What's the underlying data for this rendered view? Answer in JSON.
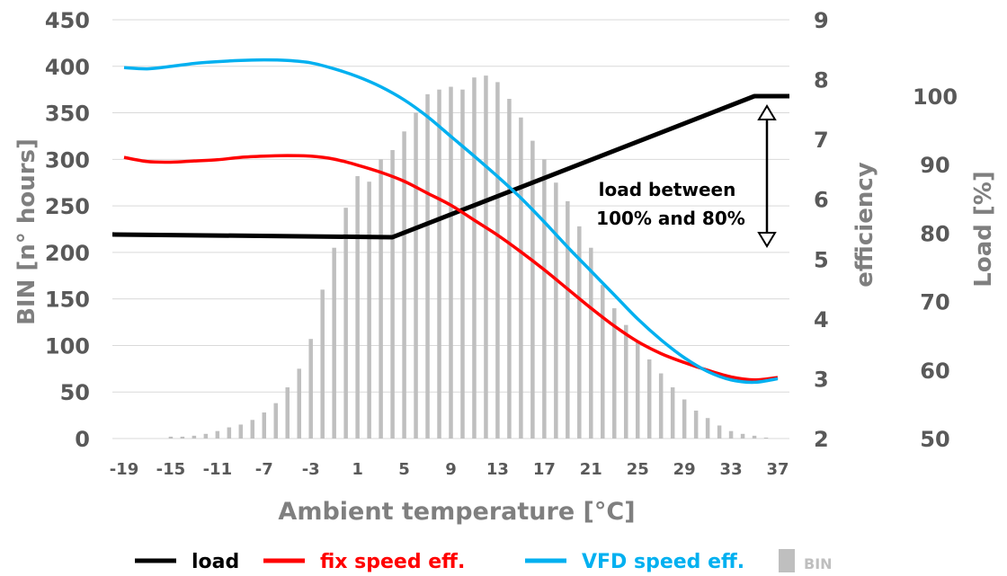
{
  "chart_data": {
    "type": "bar",
    "xlabel": "Ambient temperature [°C]",
    "ylabel_left": "BIN [n° hours]",
    "ylabel_right1": "efficiency",
    "ylabel_right2": "Load [%]",
    "annotation": [
      "load between",
      "100% and 80%"
    ],
    "ylim_left": [
      0,
      450
    ],
    "ylim_right1": [
      2,
      9
    ],
    "ylim_right2": [
      50,
      100
    ],
    "left_ticks": [
      0,
      50,
      100,
      150,
      200,
      250,
      300,
      350,
      400,
      450
    ],
    "right1_ticks": [
      2,
      3,
      4,
      5,
      6,
      7,
      8,
      9
    ],
    "right2_ticks": [
      50,
      60,
      70,
      80,
      90,
      100
    ],
    "x_ticks": [
      -19,
      -15,
      -11,
      -7,
      -3,
      1,
      5,
      9,
      13,
      17,
      21,
      25,
      29,
      33,
      37
    ],
    "x_range": [
      -20,
      38
    ],
    "bin": {
      "name": "BIN",
      "color": "#bfbfbf",
      "x": [
        -15,
        -14,
        -13,
        -12,
        -11,
        -10,
        -9,
        -8,
        -7,
        -6,
        -5,
        -4,
        -3,
        -2,
        -1,
        0,
        1,
        2,
        3,
        4,
        5,
        6,
        7,
        8,
        9,
        10,
        11,
        12,
        13,
        14,
        15,
        16,
        17,
        18,
        19,
        20,
        21,
        22,
        23,
        24,
        25,
        26,
        27,
        28,
        29,
        30,
        31,
        32,
        33,
        34,
        35,
        36
      ],
      "values": [
        2,
        2,
        3,
        5,
        8,
        12,
        15,
        20,
        28,
        38,
        55,
        75,
        107,
        160,
        205,
        248,
        282,
        276,
        300,
        310,
        330,
        350,
        370,
        375,
        378,
        375,
        388,
        390,
        383,
        365,
        345,
        320,
        300,
        275,
        255,
        228,
        205,
        165,
        140,
        122,
        105,
        85,
        70,
        55,
        42,
        30,
        22,
        14,
        8,
        5,
        3,
        1
      ]
    },
    "series": [
      {
        "name": "load",
        "axis": "right2",
        "color": "#000000",
        "x": [
          -20,
          4,
          35,
          38
        ],
        "values": [
          79.8,
          79.4,
          100,
          100
        ]
      },
      {
        "name": "fix speed eff.",
        "axis": "right1",
        "color": "#ff0000",
        "x": [
          -19,
          -17,
          -15,
          -13,
          -11,
          -9,
          -7,
          -5,
          -3,
          -1,
          1,
          3,
          5,
          7,
          9,
          11,
          13,
          15,
          17,
          19,
          21,
          23,
          25,
          27,
          29,
          31,
          33,
          35,
          37
        ],
        "values": [
          6.7,
          6.63,
          6.62,
          6.64,
          6.66,
          6.7,
          6.72,
          6.73,
          6.72,
          6.67,
          6.57,
          6.45,
          6.3,
          6.1,
          5.9,
          5.65,
          5.4,
          5.12,
          4.82,
          4.5,
          4.18,
          3.88,
          3.62,
          3.42,
          3.27,
          3.14,
          3.03,
          2.98,
          3.02
        ]
      },
      {
        "name": "VFD speed eff.",
        "axis": "right1",
        "color": "#00b0f0",
        "x": [
          -19,
          -17,
          -15,
          -13,
          -11,
          -9,
          -7,
          -5,
          -3,
          -1,
          1,
          3,
          5,
          7,
          9,
          11,
          13,
          15,
          17,
          19,
          21,
          23,
          25,
          27,
          29,
          31,
          33,
          35,
          37
        ],
        "values": [
          8.2,
          8.18,
          8.22,
          8.27,
          8.3,
          8.32,
          8.33,
          8.32,
          8.28,
          8.18,
          8.05,
          7.88,
          7.66,
          7.38,
          7.05,
          6.72,
          6.38,
          6.02,
          5.62,
          5.2,
          4.8,
          4.4,
          4.0,
          3.65,
          3.35,
          3.12,
          2.98,
          2.94,
          3.0
        ]
      }
    ],
    "legend": {
      "placement": "bottom",
      "items": [
        "load",
        "fix speed eff.",
        "VFD speed eff.",
        "BIN"
      ]
    }
  }
}
